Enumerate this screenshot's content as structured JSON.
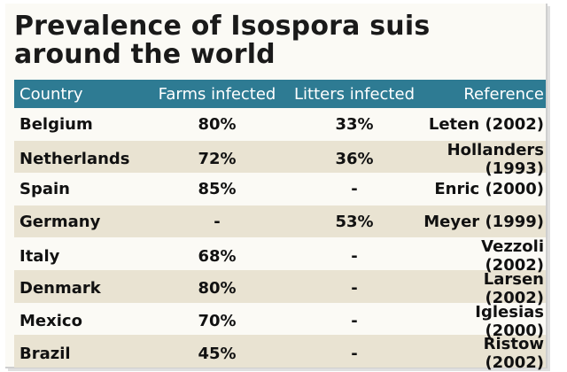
{
  "title": "Prevalence of Isospora suis around the world",
  "headers": [
    "Country",
    "Farms infected",
    "Litters infected",
    "Reference"
  ],
  "rows": [
    {
      "country": "Belgium",
      "farms": "80%",
      "litters": "33%",
      "reference": "Leten (2002)"
    },
    {
      "country": "Netherlands",
      "farms": "72%",
      "litters": "36%",
      "reference": "Hollanders (1993)"
    },
    {
      "country": "Spain",
      "farms": "85%",
      "litters": "-",
      "reference": "Enric (2000)"
    },
    {
      "country": "Germany",
      "farms": "-",
      "litters": "53%",
      "reference": "Meyer (1999)"
    },
    {
      "country": "Italy",
      "farms": "68%",
      "litters": "-",
      "reference": "Vezzoli (2002)"
    },
    {
      "country": "Denmark",
      "farms": "80%",
      "litters": "-",
      "reference": "Larsen (2002)"
    },
    {
      "country": "Mexico",
      "farms": "70%",
      "litters": "-",
      "reference": "Iglesias (2000)"
    },
    {
      "country": "Brazil",
      "farms": "45%",
      "litters": "-",
      "reference": "Ristow (2002)"
    }
  ],
  "colors": {
    "header_bg": "#2e7b93",
    "row_alt_bg": "#e9e3d2",
    "card_bg": "#fbfaf5"
  }
}
